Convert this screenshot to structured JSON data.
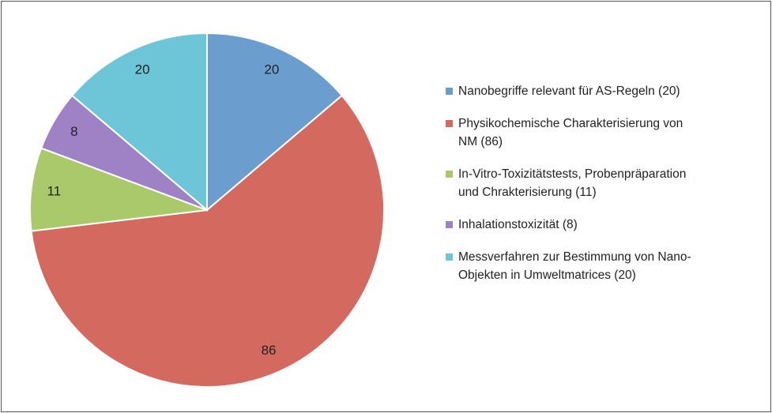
{
  "chart_data": {
    "type": "pie",
    "categories": [
      "Nanobegriffe relevant für AS-Regeln (20)",
      "Physikochemische Charakterisierung von NM (86)",
      "In-Vitro-Toxizitätstests, Probenpräparation und Chrakterisierung (11)",
      "Inhalationstoxizität (8)",
      "Messverfahren zur Bestimmung von Nano-Objekten in Umweltmatrices (20)"
    ],
    "values": [
      20,
      86,
      11,
      8,
      20
    ],
    "colors": [
      "#6b9dcf",
      "#d4695f",
      "#a9c96b",
      "#9f81c6",
      "#6cc6d7"
    ],
    "legend": "right"
  }
}
